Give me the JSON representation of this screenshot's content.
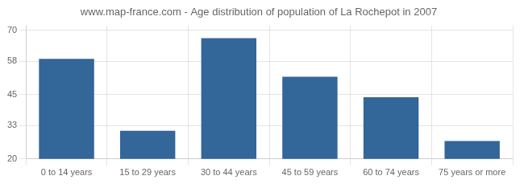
{
  "chart_data": {
    "type": "bar",
    "title": "www.map-france.com - Age distribution of population of La Rochepot in 2007",
    "categories": [
      "0 to 14 years",
      "15 to 29 years",
      "30 to 44 years",
      "45 to 59 years",
      "60 to 74 years",
      "75 years or more"
    ],
    "values": [
      59,
      31,
      67,
      52,
      44,
      27
    ],
    "color": "#336699",
    "ylim": [
      20,
      72
    ],
    "yticks": [
      20,
      33,
      45,
      58,
      70
    ],
    "grid": true
  }
}
